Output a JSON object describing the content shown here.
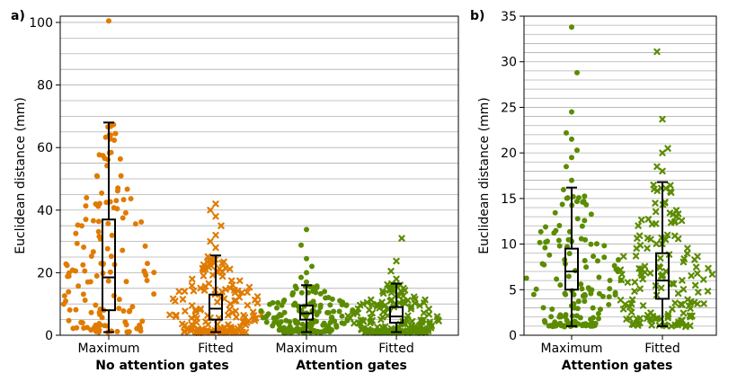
{
  "colors": {
    "no_attention": "#e07b00",
    "attention": "#5b8c00",
    "box": "#000000",
    "grid": "#b0b0b0"
  },
  "chart_data": [
    {
      "panel_label": "a)",
      "type": "swarm-box",
      "ylabel": "Euclidean distance (mm)",
      "ylim": [
        0,
        102
      ],
      "yticks": [
        0,
        20,
        40,
        60,
        80,
        100
      ],
      "grid_step": 5,
      "categories": [
        "Maximum",
        "Fitted",
        "Maximum",
        "Fitted"
      ],
      "group_labels": [
        {
          "label": "No attention gates",
          "categories": [
            0,
            1
          ]
        },
        {
          "label": "Attention gates",
          "categories": [
            2,
            3
          ]
        }
      ],
      "series": [
        {
          "name": "No attention gates - Maximum",
          "color_key": "no_attention",
          "marker": "circle",
          "box": {
            "whisker_low": 1,
            "q1": 8,
            "median": 18.5,
            "q3": 37,
            "whisker_high": 68
          },
          "outliers": [
            100.5
          ],
          "distribution": {
            "min": 1,
            "max": 68,
            "n": 140,
            "shape": "wide"
          }
        },
        {
          "name": "No attention gates - Fitted",
          "color_key": "no_attention",
          "marker": "x",
          "box": {
            "whisker_low": 1,
            "q1": 5,
            "median": 8.5,
            "q3": 13,
            "whisker_high": 25.5
          },
          "outliers": [
            28,
            30,
            32,
            35,
            38,
            40,
            42
          ],
          "distribution": {
            "min": 1,
            "max": 25,
            "n": 160,
            "shape": "compact"
          }
        },
        {
          "name": "Attention gates - Maximum",
          "color_key": "attention",
          "marker": "circle",
          "box": {
            "whisker_low": 1,
            "q1": 5,
            "median": 7,
            "q3": 9.5,
            "whisker_high": 16
          },
          "outliers": [
            17,
            18.5,
            20,
            22,
            24.5,
            28.8,
            33.8
          ],
          "distribution": {
            "min": 1,
            "max": 16,
            "n": 170,
            "shape": "compact"
          }
        },
        {
          "name": "Attention gates - Fitted",
          "color_key": "attention",
          "marker": "x",
          "box": {
            "whisker_low": 1,
            "q1": 4,
            "median": 6,
            "q3": 9,
            "whisker_high": 16.5
          },
          "outliers": [
            18,
            20.5,
            23.7,
            31
          ],
          "distribution": {
            "min": 1,
            "max": 16.5,
            "n": 170,
            "shape": "compact"
          }
        }
      ]
    },
    {
      "panel_label": "b)",
      "type": "swarm-box",
      "ylabel": "Euclidean distance (mm)",
      "ylim": [
        0,
        35
      ],
      "yticks": [
        0,
        5,
        10,
        15,
        20,
        25,
        30,
        35
      ],
      "grid_step": 1,
      "categories": [
        "Maximum",
        "Fitted"
      ],
      "group_labels": [
        {
          "label": "Attention gates",
          "categories": [
            0,
            1
          ]
        }
      ],
      "series": [
        {
          "name": "Attention gates - Maximum",
          "color_key": "attention",
          "marker": "circle",
          "box": {
            "whisker_low": 1,
            "q1": 5,
            "median": 7,
            "q3": 9.5,
            "whisker_high": 16.2
          },
          "outliers": [
            17,
            18.5,
            19.5,
            20.3,
            21.5,
            22.2,
            24.5,
            28.8,
            33.8
          ],
          "distribution": {
            "min": 1,
            "max": 16,
            "n": 150,
            "shape": "compact"
          }
        },
        {
          "name": "Attention gates - Fitted",
          "color_key": "attention",
          "marker": "x",
          "box": {
            "whisker_low": 1,
            "q1": 4,
            "median": 6,
            "q3": 9,
            "whisker_high": 16.8
          },
          "outliers": [
            18,
            18.5,
            20,
            20.5,
            23.7,
            31.1
          ],
          "distribution": {
            "min": 1,
            "max": 16.8,
            "n": 150,
            "shape": "wide"
          }
        }
      ]
    }
  ]
}
